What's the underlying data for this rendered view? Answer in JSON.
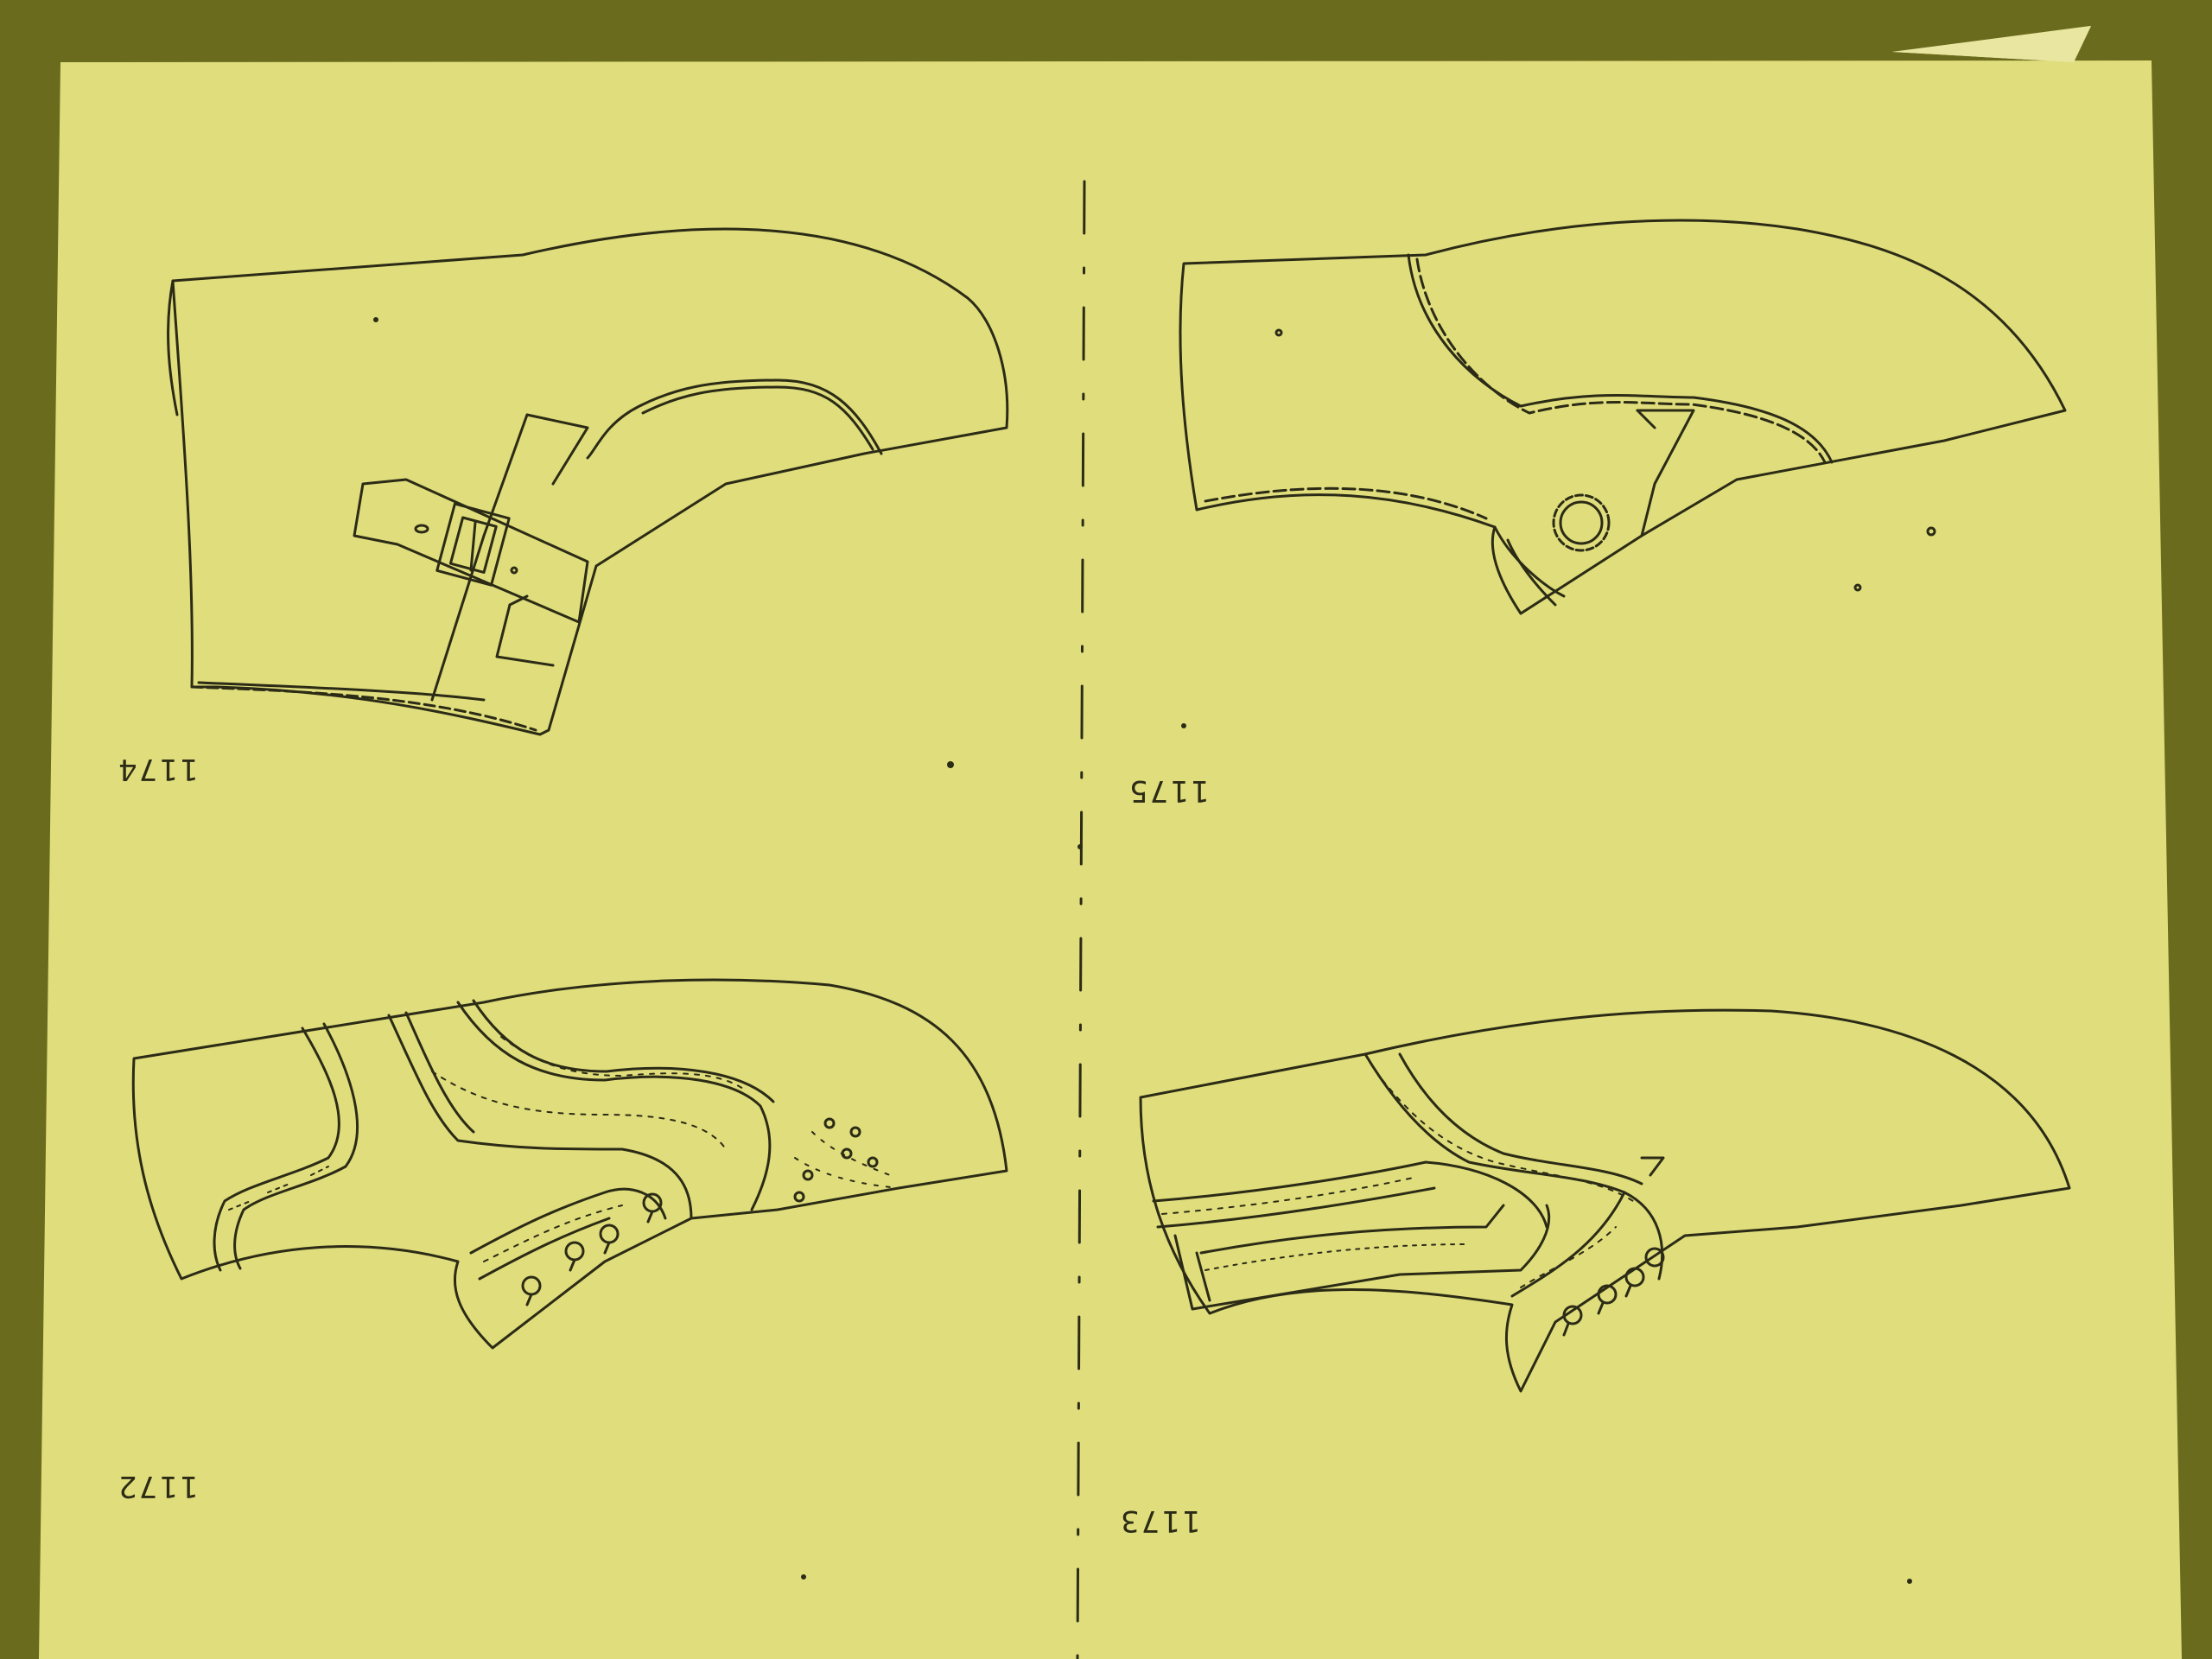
{
  "sheet": {
    "paper_color": "#e0dd7c",
    "ink_color": "#2b2b16",
    "backdrop_color": "#6b6b1e"
  },
  "patterns": [
    {
      "id": "1174",
      "label": "1174",
      "type": "monk-strap-boot"
    },
    {
      "id": "1175",
      "label": "1175",
      "type": "button-overlay-boot"
    },
    {
      "id": "1172",
      "label": "1172",
      "type": "brogue-boot"
    },
    {
      "id": "1173",
      "label": "1173",
      "type": "brogue-wing-boot"
    }
  ]
}
